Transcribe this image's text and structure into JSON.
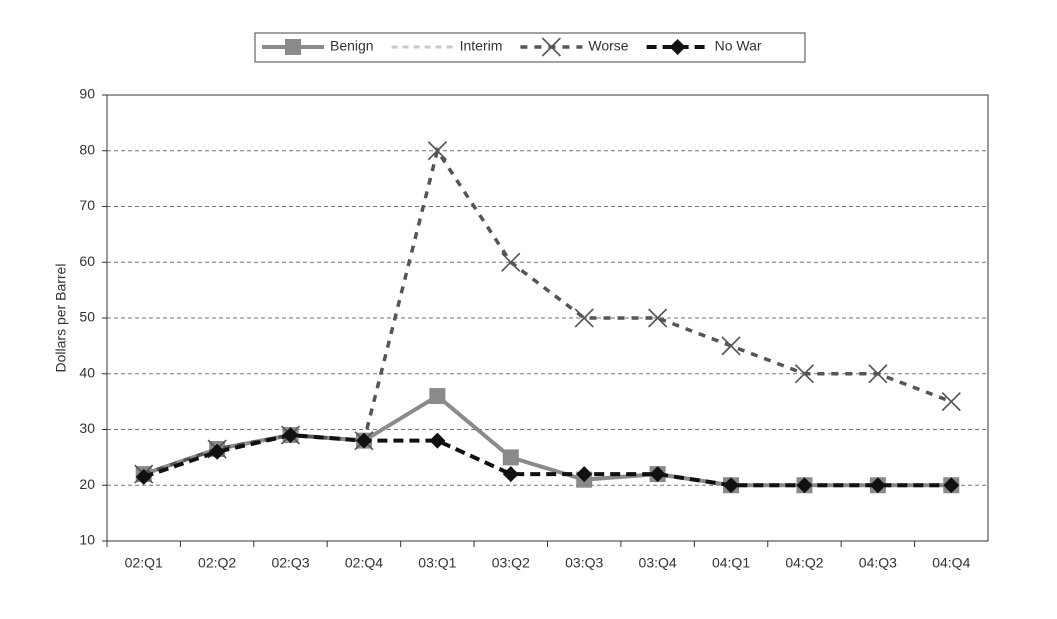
{
  "chart_data": {
    "type": "line",
    "y_label": "Dollars per Barrel",
    "categories": [
      "02:Q1",
      "02:Q2",
      "02:Q3",
      "02:Q4",
      "03:Q1",
      "03:Q2",
      "03:Q3",
      "03:Q4",
      "04:Q1",
      "04:Q2",
      "04:Q3",
      "04:Q4"
    ],
    "series": [
      {
        "name": "Benign",
        "color": "#8a8a8a",
        "values": [
          22,
          26.5,
          29,
          28,
          36,
          25,
          21,
          22,
          20,
          20,
          20,
          20
        ]
      },
      {
        "name": "Interim",
        "color": "#c8c8c8",
        "values": [
          null,
          null,
          null,
          null,
          null,
          null,
          null,
          null,
          null,
          null,
          null,
          null
        ]
      },
      {
        "name": "Worse",
        "color": "#555555",
        "values": [
          22,
          26.5,
          29,
          28,
          80,
          60,
          50,
          50,
          45,
          40,
          40,
          35
        ]
      },
      {
        "name": "No War",
        "color": "#111111",
        "values": [
          21.5,
          26,
          29,
          28,
          28,
          22,
          22,
          22,
          20,
          20,
          20,
          20
        ]
      }
    ],
    "ylim": [
      10,
      90
    ],
    "yticks": [
      10,
      20,
      30,
      40,
      50,
      60,
      70,
      80,
      90
    ],
    "grid": true
  }
}
